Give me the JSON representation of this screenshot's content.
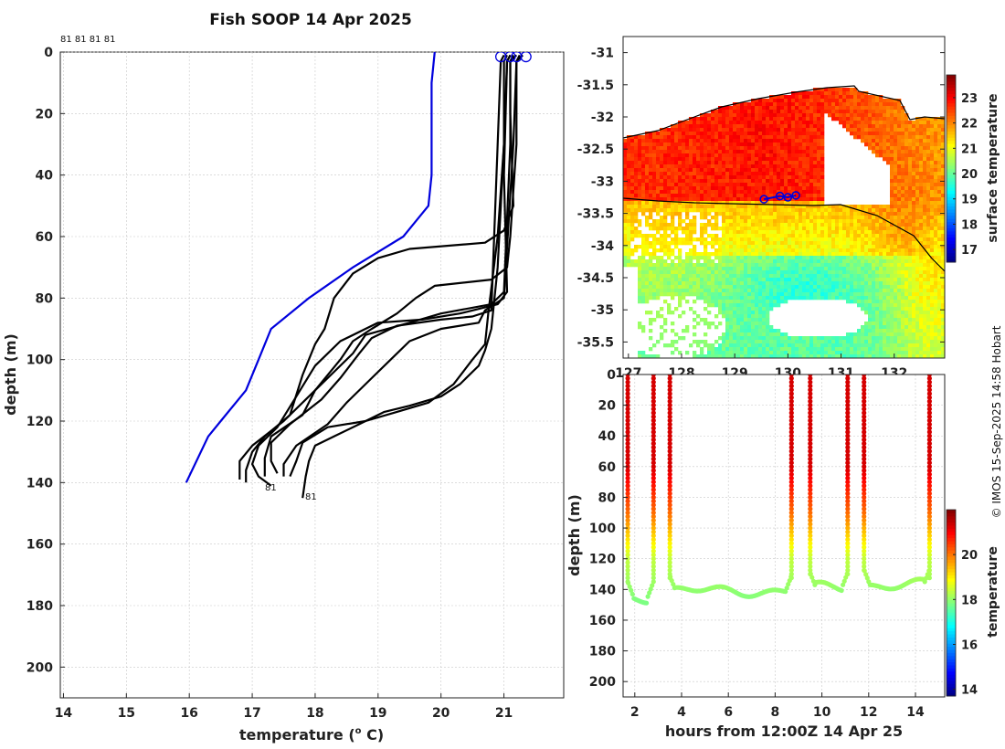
{
  "title": "Fish SOOP 14 Apr 2025",
  "credit": "© IMOS 15-Sep-2025 14:58 Hobart",
  "chart_data": [
    {
      "type": "line",
      "name": "temperature-profiles",
      "xlabel": "temperature (",
      "xlabel_sup": "o",
      "xlabel_end": " C)",
      "ylabel": "depth (m)",
      "xlim": [
        13.95,
        21.95
      ],
      "ylim": [
        0,
        210
      ],
      "xticks": [
        14,
        15,
        16,
        17,
        18,
        19,
        20,
        21
      ],
      "yticks": [
        0,
        20,
        40,
        60,
        80,
        100,
        120,
        140,
        160,
        180,
        200
      ],
      "top_annotation": "81 81 81 81",
      "bottom_labels": [
        "81",
        "81"
      ],
      "climatology": {
        "color": "#0000dd",
        "points": [
          [
            19.9,
            0
          ],
          [
            19.85,
            10
          ],
          [
            19.85,
            40
          ],
          [
            19.8,
            50
          ],
          [
            19.4,
            60
          ],
          [
            18.6,
            70
          ],
          [
            17.9,
            80
          ],
          [
            17.3,
            90
          ],
          [
            17.1,
            100
          ],
          [
            16.9,
            110
          ],
          [
            16.5,
            120
          ],
          [
            16.3,
            125
          ],
          [
            15.95,
            140
          ]
        ]
      },
      "profiles": [
        {
          "color": "#000000",
          "points": [
            [
              21.2,
              1
            ],
            [
              21.1,
              3
            ],
            [
              21.1,
              20
            ],
            [
              21.15,
              50
            ],
            [
              21.0,
              58
            ],
            [
              20.7,
              62
            ],
            [
              19.5,
              64
            ],
            [
              19.0,
              67
            ],
            [
              18.6,
              72
            ],
            [
              18.3,
              80
            ],
            [
              18.15,
              90
            ],
            [
              18.0,
              95
            ],
            [
              17.8,
              105
            ],
            [
              17.6,
              118
            ],
            [
              17.2,
              125
            ],
            [
              17.0,
              130
            ],
            [
              16.9,
              136
            ],
            [
              16.9,
              140
            ]
          ]
        },
        {
          "color": "#000000",
          "points": [
            [
              21.3,
              1
            ],
            [
              21.2,
              3
            ],
            [
              21.2,
              30
            ],
            [
              21.1,
              60
            ],
            [
              21.05,
              70
            ],
            [
              20.8,
              74
            ],
            [
              19.9,
              76
            ],
            [
              19.6,
              80
            ],
            [
              19.3,
              85
            ],
            [
              18.9,
              90
            ],
            [
              18.6,
              94
            ],
            [
              18.4,
              100
            ],
            [
              18.0,
              110
            ],
            [
              17.5,
              120
            ],
            [
              17.0,
              128
            ],
            [
              16.8,
              133
            ],
            [
              16.8,
              139
            ]
          ]
        },
        {
          "color": "#000000",
          "points": [
            [
              21.1,
              1
            ],
            [
              21.05,
              3
            ],
            [
              21.0,
              40
            ],
            [
              21.05,
              78
            ],
            [
              20.9,
              82
            ],
            [
              20.3,
              85
            ],
            [
              19.7,
              87
            ],
            [
              19.0,
              88
            ],
            [
              18.4,
              94
            ],
            [
              18.0,
              102
            ],
            [
              17.7,
              112
            ],
            [
              17.4,
              122
            ],
            [
              17.1,
              128
            ],
            [
              17.0,
              134
            ],
            [
              17.1,
              138
            ],
            [
              17.3,
              141
            ]
          ]
        },
        {
          "color": "#000000",
          "points": [
            [
              21.15,
              1
            ],
            [
              21.1,
              3
            ],
            [
              21.1,
              30
            ],
            [
              21.0,
              78
            ],
            [
              20.8,
              82
            ],
            [
              20.0,
              85
            ],
            [
              19.5,
              88
            ],
            [
              18.8,
              92
            ],
            [
              18.6,
              98
            ],
            [
              18.3,
              104
            ],
            [
              18.0,
              110
            ],
            [
              17.8,
              118
            ],
            [
              17.3,
              125
            ],
            [
              17.2,
              132
            ],
            [
              17.2,
              138
            ]
          ]
        },
        {
          "color": "#000000",
          "points": [
            [
              21.0,
              1
            ],
            [
              20.95,
              3
            ],
            [
              20.9,
              30
            ],
            [
              20.8,
              84
            ],
            [
              20.5,
              86
            ],
            [
              20.0,
              87
            ],
            [
              19.3,
              89
            ],
            [
              18.9,
              93
            ],
            [
              18.7,
              98
            ],
            [
              18.4,
              106
            ],
            [
              18.1,
              113
            ],
            [
              17.6,
              121
            ],
            [
              17.3,
              127
            ],
            [
              17.3,
              133
            ],
            [
              17.4,
              137
            ]
          ]
        },
        {
          "color": "#000000",
          "points": [
            [
              21.25,
              1
            ],
            [
              21.2,
              3
            ],
            [
              21.15,
              30
            ],
            [
              21.0,
              80
            ],
            [
              20.7,
              84
            ],
            [
              20.6,
              88
            ],
            [
              20.0,
              90
            ],
            [
              19.5,
              94
            ],
            [
              19.2,
              100
            ],
            [
              18.9,
              106
            ],
            [
              18.5,
              114
            ],
            [
              18.2,
              121
            ],
            [
              17.7,
              128
            ],
            [
              17.5,
              134
            ],
            [
              17.5,
              138
            ]
          ]
        },
        {
          "color": "#000000",
          "points": [
            [
              21.05,
              1
            ],
            [
              21.0,
              3
            ],
            [
              21.0,
              30
            ],
            [
              20.9,
              60
            ],
            [
              20.75,
              85
            ],
            [
              20.7,
              95
            ],
            [
              20.5,
              100
            ],
            [
              20.2,
              108
            ],
            [
              19.8,
              114
            ],
            [
              19.3,
              117
            ],
            [
              18.8,
              120
            ],
            [
              18.2,
              122
            ],
            [
              17.8,
              127
            ],
            [
              17.7,
              133
            ],
            [
              17.6,
              138
            ]
          ]
        },
        {
          "color": "#000000",
          "points": [
            [
              21.1,
              1
            ],
            [
              21.05,
              3
            ],
            [
              21.0,
              30
            ],
            [
              20.9,
              70
            ],
            [
              20.8,
              90
            ],
            [
              20.7,
              97
            ],
            [
              20.6,
              102
            ],
            [
              20.3,
              108
            ],
            [
              20.0,
              112
            ],
            [
              19.5,
              115
            ],
            [
              19.1,
              117
            ],
            [
              18.7,
              121
            ],
            [
              18.3,
              125
            ],
            [
              18.0,
              128
            ],
            [
              17.9,
              133
            ],
            [
              17.85,
              138
            ],
            [
              17.8,
              145
            ]
          ]
        }
      ],
      "surface_markers": {
        "color": "#0000dd",
        "temps": [
          20.95,
          21.1,
          21.2,
          21.35
        ],
        "depth": 1.5
      }
    },
    {
      "type": "heatmap",
      "name": "sst-map",
      "colorbar_label": "surface temperature",
      "colorbar_ticks": [
        17,
        18,
        19,
        20,
        21,
        22,
        23
      ],
      "colorbar_range": [
        16.5,
        23.9
      ],
      "xlim": [
        126.9,
        132.95
      ],
      "ylim": [
        -35.75,
        -30.75
      ],
      "xticks": [
        127,
        128,
        129,
        130,
        131,
        132
      ],
      "yticks": [
        -31,
        -31.5,
        -32,
        -32.5,
        -33,
        -33.5,
        -34,
        -34.5,
        -35,
        -35.5
      ],
      "ytick_labels": [
        "-31",
        "-31.5",
        "-32",
        "-32.5",
        "-33",
        "-33.5",
        "-34",
        "-34.5",
        "-35",
        "-35.5"
      ],
      "track": {
        "color": "#0000dd",
        "points": [
          [
            129.55,
            -33.28
          ],
          [
            129.85,
            -33.23
          ],
          [
            130.0,
            -33.25
          ],
          [
            130.15,
            -33.22
          ]
        ]
      }
    },
    {
      "type": "scatter",
      "name": "depth-time-section",
      "xlabel": "hours from 12:00Z 14 Apr 25",
      "ylabel": "depth (m)",
      "colorbar_label": "temperature",
      "colorbar_ticks": [
        14,
        16,
        18,
        20
      ],
      "colorbar_range": [
        13.7,
        22.0
      ],
      "xlim": [
        1.5,
        15.25
      ],
      "ylim": [
        0,
        210
      ],
      "xticks": [
        2,
        4,
        6,
        8,
        10,
        12,
        14
      ],
      "yticks": [
        0,
        20,
        40,
        60,
        80,
        100,
        120,
        140,
        160,
        180,
        200
      ],
      "casts": [
        {
          "start": 1.7,
          "end": 2.8,
          "bottom": 145
        },
        {
          "start": 3.5,
          "end": 8.7,
          "bottom": 141
        },
        {
          "start": 9.5,
          "end": 11.1,
          "bottom": 139
        },
        {
          "start": 11.8,
          "end": 14.6,
          "bottom": 137
        }
      ]
    }
  ]
}
